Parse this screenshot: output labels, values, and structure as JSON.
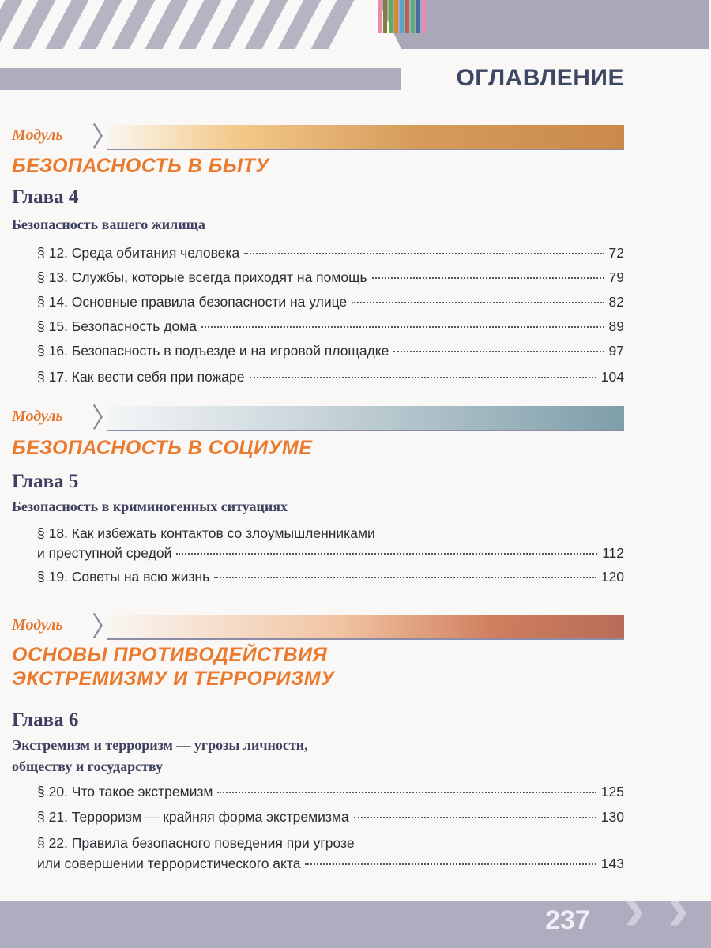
{
  "header": {
    "title": "ОГЛАВЛЕНИЕ",
    "stripe_colors": [
      "#e98ab0",
      "#8a7a3c",
      "#5fae5a",
      "#d48a3a",
      "#5aa6c8",
      "#b06850",
      "#58b07a",
      "#4a6aa8",
      "#e98ab0"
    ]
  },
  "modules": [
    {
      "label": "Модуль",
      "title_lines": [
        "БЕЗОПАСНОСТЬ В БЫТУ"
      ],
      "chapter": {
        "title": "Глава 4",
        "subtitle_lines": [
          "Безопасность вашего жилища"
        ],
        "entries": [
          {
            "text": "§ 12. Среда обитания человека",
            "page": "72"
          },
          {
            "text": "§ 13. Службы, которые всегда приходят на помощь",
            "page": "79"
          },
          {
            "text": "§ 14. Основные правила безопасности на улице",
            "page": "82"
          },
          {
            "text": "§ 15. Безопасность дома",
            "page": "89"
          },
          {
            "text": "§ 16. Безопасность в подъезде и на игровой площадке",
            "page": "97"
          },
          {
            "text": "§ 17. Как вести себя при пожаре",
            "page": "104"
          }
        ]
      }
    },
    {
      "label": "Модуль",
      "title_lines": [
        "БЕЗОПАСНОСТЬ В СОЦИУМЕ"
      ],
      "chapter": {
        "title": "Глава 5",
        "subtitle_lines": [
          "Безопасность в криминогенных ситуациях"
        ],
        "entries": [
          {
            "text_first": "§ 18. Как избежать контактов со злоумышленниками",
            "text": "и преступной средой",
            "page": "112"
          },
          {
            "text": "§ 19. Советы на всю жизнь",
            "page": "120"
          }
        ]
      }
    },
    {
      "label": "Модуль",
      "title_lines": [
        "ОСНОВЫ ПРОТИВОДЕЙСТВИЯ",
        "ЭКСТРЕМИЗМУ И ТЕРРОРИЗМУ"
      ],
      "chapter": {
        "title": "Глава 6",
        "subtitle_lines": [
          "Экстремизм и терроризм — угрозы личности,",
          "обществу и государству"
        ],
        "entries": [
          {
            "text": "§ 20. Что такое экстремизм",
            "page": "125"
          },
          {
            "text": "§ 21. Терроризм — крайняя форма экстремизма",
            "page": "130"
          },
          {
            "text_first": "§ 22. Правила безопасного поведения при угрозе",
            "text": "или совершении террористического акта",
            "page": "143"
          }
        ]
      }
    }
  ],
  "footer": {
    "page_number": "237"
  }
}
